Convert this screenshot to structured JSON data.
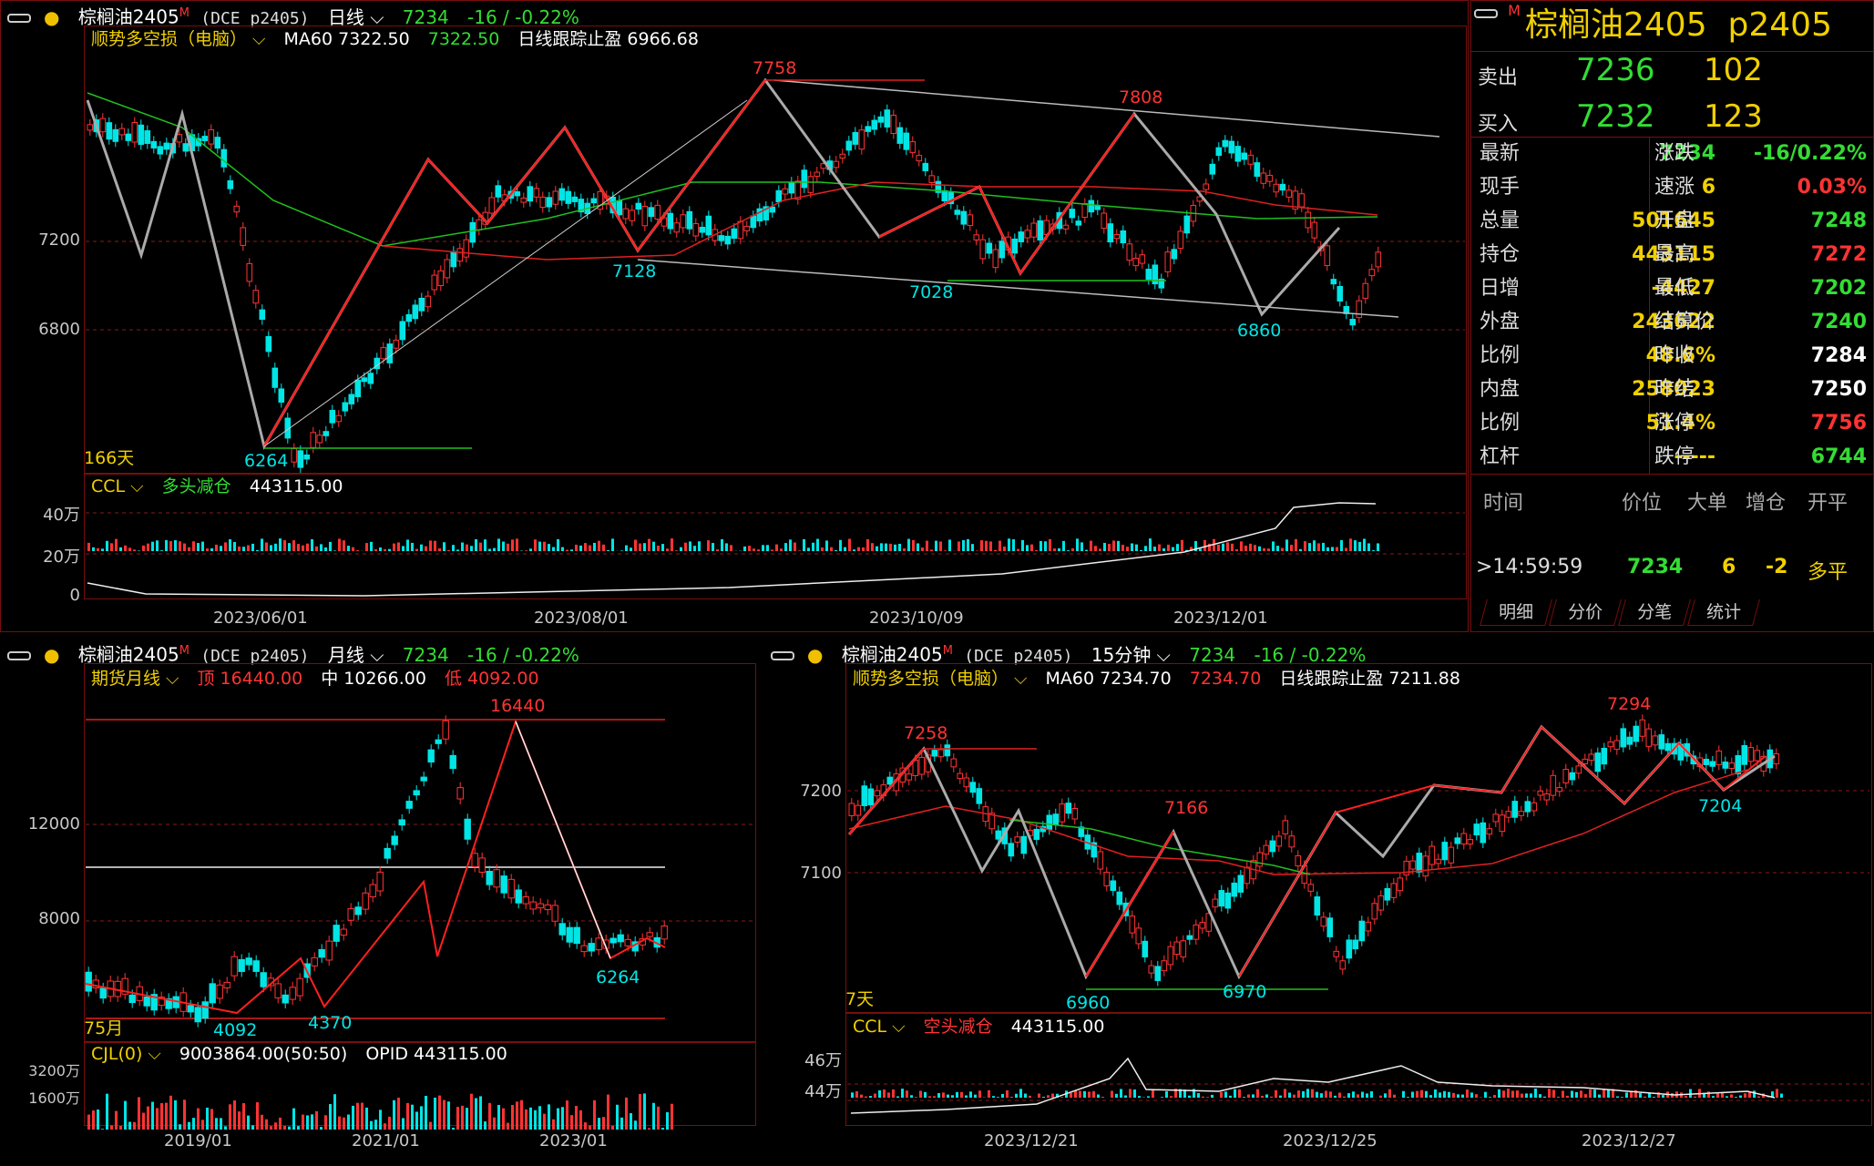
{
  "colors": {
    "up": "#ff3333",
    "down": "#00e5e5",
    "green": "#33dd33",
    "yellow": "#f0d000",
    "white": "#ffffff",
    "ma_red": "#e02020",
    "ma_green": "#20c020"
  },
  "main": {
    "symbol": "棕榈油2405",
    "flag": "M",
    "code": "(DCE p2405)",
    "period": "日线",
    "price": "7234",
    "change": "-16 / -0.22%",
    "indicator": {
      "name": "顺势多空损（电脑）",
      "ma_label": "MA60 7322.50",
      "ma_value": "7322.50",
      "stop": "日线跟踪止盈 6966.68"
    },
    "y_labels": [
      "7200",
      "6800"
    ],
    "annotations": {
      "hi1": "7758",
      "hi2": "7808",
      "lo1": "7128",
      "lo2": "7028",
      "lo3": "6860",
      "lo0": "6264",
      "days": "166天"
    },
    "sub": {
      "name": "CCL",
      "desc": "多头减仓",
      "value": "443115.00",
      "y_labels": [
        "40万",
        "20万",
        "0"
      ]
    },
    "x_labels": [
      "2023/06/01",
      "2023/08/01",
      "2023/10/09",
      "2023/12/01"
    ]
  },
  "monthly": {
    "symbol": "棕榈油2405",
    "flag": "M",
    "code": "(DCE p2405)",
    "period": "月线",
    "price": "7234",
    "change": "-16 / -0.22%",
    "indicator": {
      "name": "期货月线",
      "top_label": "顶",
      "top": "16440.00",
      "mid_label": "中",
      "mid": "10266.00",
      "low_label": "低",
      "low": "4092.00"
    },
    "y_labels": [
      "12000",
      "8000"
    ],
    "annotations": {
      "hi": "16440",
      "lo1": "4092",
      "lo2": "4370",
      "lo3": "6264",
      "months": "75月"
    },
    "sub": {
      "name": "CJL(0)",
      "value": "9003864.00(50:50)",
      "opid": "OPID 443115.00",
      "y_labels": [
        "3200万",
        "1600万"
      ]
    },
    "x_labels": [
      "2019/01",
      "2021/01",
      "2023/01"
    ]
  },
  "m15": {
    "symbol": "棕榈油2405",
    "flag": "M",
    "code": "(DCE p2405)",
    "period": "15分钟",
    "price": "7234",
    "change": "-16 / -0.22%",
    "indicator": {
      "name": "顺势多空损（电脑）",
      "ma_label": "MA60 7234.70",
      "ma_value": "7234.70",
      "stop": "日线跟踪止盈 7211.88"
    },
    "y_labels": [
      "7200",
      "7100"
    ],
    "annotations": {
      "hi1": "7258",
      "hi2": "7166",
      "hi3": "7294",
      "lo1": "6960",
      "lo2": "6970",
      "lo3": "7204",
      "days": "7天"
    },
    "sub": {
      "name": "CCL",
      "desc": "空头减仓",
      "value": "443115.00",
      "y_labels": [
        "46万",
        "44万"
      ]
    },
    "x_labels": [
      "2023/12/21",
      "2023/12/25",
      "2023/12/27"
    ]
  },
  "quote": {
    "flag": "M",
    "title": "棕榈油2405  p2405",
    "sell": {
      "label": "卖出",
      "price": "7236",
      "vol": "102"
    },
    "buy": {
      "label": "买入",
      "price": "7232",
      "vol": "123"
    },
    "rows": [
      {
        "l1": "最新",
        "v1": "7234",
        "c1": "#33dd33",
        "l2": "涨跌",
        "v2": "-16/0.22%",
        "c2": "#33dd33"
      },
      {
        "l1": "现手",
        "v1": "6",
        "c1": "#f0d000",
        "l2": "速涨",
        "v2": "0.03%",
        "c2": "#ff3333"
      },
      {
        "l1": "总量",
        "v1": "501645",
        "c1": "#f0d000",
        "l2": "开盘",
        "v2": "7248",
        "c2": "#33dd33"
      },
      {
        "l1": "持仓",
        "v1": "443115",
        "c1": "#f0d000",
        "l2": "最高",
        "v2": "7272",
        "c2": "#ff3333"
      },
      {
        "l1": "日增",
        "v1": "-4427",
        "c1": "#f0d000",
        "l2": "最低",
        "v2": "7202",
        "c2": "#33dd33"
      },
      {
        "l1": "外盘",
        "v1": "243622",
        "c1": "#f0d000",
        "l2": "结算价",
        "v2": "7240",
        "c2": "#33dd33"
      },
      {
        "l1": "比例",
        "v1": "48.6%",
        "c1": "#f0d000",
        "l2": "昨收",
        "v2": "7284",
        "c2": "#ffffff"
      },
      {
        "l1": "内盘",
        "v1": "258023",
        "c1": "#f0d000",
        "l2": "昨结",
        "v2": "7250",
        "c2": "#ffffff"
      },
      {
        "l1": "比例",
        "v1": "51.4%",
        "c1": "#f0d000",
        "l2": "涨停",
        "v2": "7756",
        "c2": "#ff3333"
      },
      {
        "l1": "杠杆",
        "v1": "-----",
        "c1": "#f0d000",
        "l2": "跌停",
        "v2": "6744",
        "c2": "#33dd33"
      }
    ],
    "ticks_header": {
      "time": "时间",
      "price": "价位",
      "big": "大单",
      "oi": "增仓",
      "kind": "开平"
    },
    "tick": {
      "time": ">14:59:59",
      "price": "7234",
      "vol": "6",
      "oi": "-2",
      "kind": "多平"
    },
    "tabs": [
      "明细",
      "分价",
      "分笔",
      "统计"
    ]
  }
}
